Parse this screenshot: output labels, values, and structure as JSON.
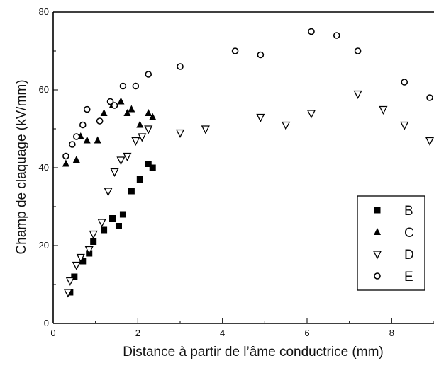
{
  "chart_data": {
    "type": "scatter",
    "title": "",
    "xlabel": "Distance à partir de l’âme conductrice (mm)",
    "ylabel": "Champ de claquage (kV/mm)",
    "xlim": [
      0,
      9
    ],
    "ylim": [
      0,
      80
    ],
    "xticks": [
      0,
      2,
      4,
      6,
      8
    ],
    "yticks": [
      0,
      20,
      40,
      60,
      80
    ],
    "grid": false,
    "legend_position": "bottom-right",
    "series": [
      {
        "name": "B",
        "marker": "square-filled",
        "color": "#000000",
        "points": [
          [
            0.4,
            8
          ],
          [
            0.5,
            12
          ],
          [
            0.7,
            16
          ],
          [
            0.85,
            18
          ],
          [
            0.95,
            21
          ],
          [
            1.2,
            24
          ],
          [
            1.4,
            27
          ],
          [
            1.55,
            25
          ],
          [
            1.65,
            28
          ],
          [
            1.85,
            34
          ],
          [
            2.05,
            37
          ],
          [
            2.25,
            41
          ],
          [
            2.35,
            40
          ]
        ]
      },
      {
        "name": "C",
        "marker": "triangle-up-filled",
        "color": "#000000",
        "points": [
          [
            0.3,
            41
          ],
          [
            0.55,
            42
          ],
          [
            0.65,
            48
          ],
          [
            0.8,
            47
          ],
          [
            1.05,
            47
          ],
          [
            1.2,
            54
          ],
          [
            1.4,
            56
          ],
          [
            1.6,
            57
          ],
          [
            1.75,
            54
          ],
          [
            1.85,
            55
          ],
          [
            2.05,
            51
          ],
          [
            2.25,
            54
          ],
          [
            2.35,
            53
          ]
        ]
      },
      {
        "name": "D",
        "marker": "triangle-down-open",
        "color": "#000000",
        "points": [
          [
            0.35,
            8
          ],
          [
            0.4,
            11
          ],
          [
            0.55,
            15
          ],
          [
            0.65,
            17
          ],
          [
            0.85,
            19
          ],
          [
            0.95,
            23
          ],
          [
            1.15,
            26
          ],
          [
            1.3,
            34
          ],
          [
            1.45,
            39
          ],
          [
            1.6,
            42
          ],
          [
            1.75,
            43
          ],
          [
            1.95,
            47
          ],
          [
            2.1,
            48
          ],
          [
            2.25,
            50
          ],
          [
            3.0,
            49
          ],
          [
            3.6,
            50
          ],
          [
            4.9,
            53
          ],
          [
            5.5,
            51
          ],
          [
            6.1,
            54
          ],
          [
            7.2,
            59
          ],
          [
            7.8,
            55
          ],
          [
            8.3,
            51
          ],
          [
            8.9,
            47
          ]
        ]
      },
      {
        "name": "E",
        "marker": "circle-open",
        "color": "#000000",
        "points": [
          [
            0.3,
            43
          ],
          [
            0.45,
            46
          ],
          [
            0.55,
            48
          ],
          [
            0.7,
            51
          ],
          [
            0.8,
            55
          ],
          [
            1.1,
            52
          ],
          [
            1.35,
            57
          ],
          [
            1.45,
            56
          ],
          [
            1.65,
            61
          ],
          [
            1.95,
            61
          ],
          [
            2.25,
            64
          ],
          [
            3.0,
            66
          ],
          [
            4.3,
            70
          ],
          [
            4.9,
            69
          ],
          [
            6.1,
            75
          ],
          [
            6.7,
            74
          ],
          [
            7.2,
            70
          ],
          [
            8.3,
            62
          ],
          [
            8.9,
            58
          ]
        ]
      }
    ]
  }
}
